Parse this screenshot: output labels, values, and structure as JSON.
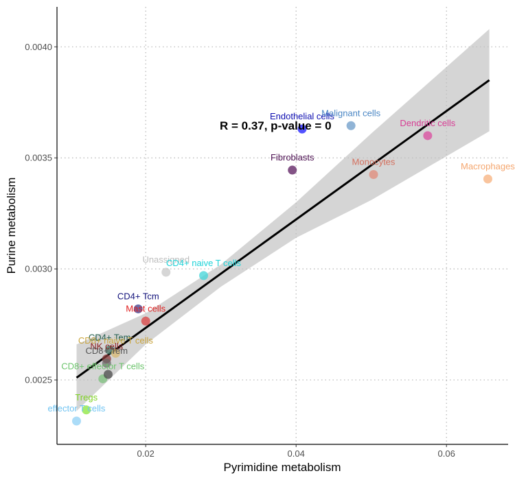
{
  "chart_data": {
    "type": "scatter",
    "xlabel": "Pyrimidine metabolism",
    "ylabel": "Purine metabolism",
    "xlim": [
      0.0082,
      0.0682
    ],
    "ylim": [
      0.00221,
      0.00418
    ],
    "x_ticks": [
      {
        "value": 0.02,
        "label": "0.02"
      },
      {
        "value": 0.04,
        "label": "0.04"
      },
      {
        "value": 0.06,
        "label": "0.06"
      }
    ],
    "y_ticks": [
      {
        "value": 0.0025,
        "label": "0.0025"
      },
      {
        "value": 0.003,
        "label": "0.0030"
      },
      {
        "value": 0.0035,
        "label": "0.0035"
      },
      {
        "value": 0.004,
        "label": "0.0040"
      }
    ],
    "grid": "dotted major gridlines",
    "annotation": "R = 0.37, p-value = 0",
    "regression": {
      "line": [
        [
          0.0108,
          0.00251
        ],
        [
          0.0657,
          0.00385
        ]
      ],
      "band": [
        {
          "x": 0.0108,
          "lo": 0.00236,
          "hi": 0.00266
        },
        {
          "x": 0.02,
          "lo": 0.00266,
          "hi": 0.0028
        },
        {
          "x": 0.03,
          "lo": 0.00292,
          "hi": 0.00302
        },
        {
          "x": 0.04,
          "lo": 0.00314,
          "hi": 0.0033
        },
        {
          "x": 0.05,
          "lo": 0.00331,
          "hi": 0.00361
        },
        {
          "x": 0.0657,
          "lo": 0.00362,
          "hi": 0.00408
        }
      ]
    },
    "points": [
      {
        "label": "Endothelial cells",
        "x": 0.0408,
        "y": 0.00363,
        "color": "#1a1aff",
        "label_color": "#0c0cb0"
      },
      {
        "label": "Malignant cells",
        "x": 0.0473,
        "y": 0.003645,
        "color": "#6b9bc8",
        "label_color": "#4a86c4"
      },
      {
        "label": "Dendritic cells",
        "x": 0.0575,
        "y": 0.0036,
        "color": "#d94a9e",
        "label_color": "#d63d94"
      },
      {
        "label": "Fibroblasts",
        "x": 0.0395,
        "y": 0.003445,
        "color": "#5a1a5e",
        "label_color": "#4b0e50"
      },
      {
        "label": "Monocytes",
        "x": 0.0503,
        "y": 0.003425,
        "color": "#e08a78",
        "label_color": "#d4705e"
      },
      {
        "label": "Macrophages",
        "x": 0.0655,
        "y": 0.003405,
        "color": "#f7b07c",
        "label_color": "#f5a66e"
      },
      {
        "label": "Unassigned",
        "x": 0.0227,
        "y": 0.002985,
        "color": "#c8c8c8",
        "label_color": "#bdbdbd"
      },
      {
        "label": "CD4+ naive T cells",
        "x": 0.0277,
        "y": 0.00297,
        "color": "#3fd4d8",
        "label_color": "#1fd3d8"
      },
      {
        "label": "CD4+ Tcm",
        "x": 0.019,
        "y": 0.00282,
        "color": "#3a3a8a",
        "label_color": "#10107a"
      },
      {
        "label": "Mast cells",
        "x": 0.02,
        "y": 0.002765,
        "color": "#d94040",
        "label_color": "#e01e1e"
      },
      {
        "label": "CD4+ Tem",
        "x": 0.0152,
        "y": 0.002635,
        "color": "#3f6f5f",
        "label_color": "#1f5c4a"
      },
      {
        "label": "CD8+ naive T cells",
        "x": 0.016,
        "y": 0.00262,
        "color": "#d8b870",
        "label_color": "#c9a43c"
      },
      {
        "label": "NK cells",
        "x": 0.0148,
        "y": 0.002595,
        "color": "#8a3a3a",
        "label_color": "#8b1c1c"
      },
      {
        "label": "CD8+ Tem",
        "x": 0.0148,
        "y": 0.002575,
        "color": "#6a6a6a",
        "label_color": "#555555"
      },
      {
        "label": "CD8+ effector T cells",
        "x": 0.0143,
        "y": 0.002505,
        "color": "#7cc07c",
        "label_color": "#6cc46c"
      },
      {
        "label": "",
        "x": 0.015,
        "y": 0.002525,
        "color": "#4a4a4a",
        "label_color": "#4a4a4a"
      },
      {
        "label": "Tregs",
        "x": 0.0121,
        "y": 0.002365,
        "color": "#8ae63a",
        "label_color": "#7ed321"
      },
      {
        "label": "effector T cells",
        "x": 0.0108,
        "y": 0.002315,
        "color": "#8fd0f6",
        "label_color": "#6ec3f2"
      }
    ]
  }
}
